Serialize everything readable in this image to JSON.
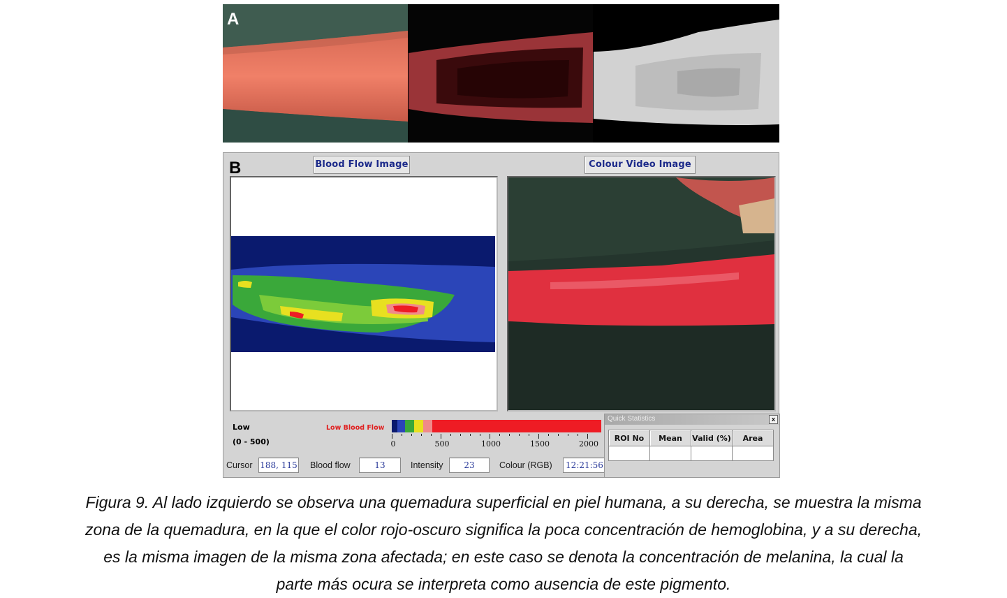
{
  "panel_a": {
    "letter": "A"
  },
  "panel_b": {
    "letter": "B",
    "tabs": {
      "blood_flow": "Blood Flow Image",
      "colour_video": "Colour Video Image"
    },
    "scale": {
      "low_label": "Low",
      "range_label": "(0 - 500)",
      "low_flow_label": "Low Blood Flow",
      "colors": [
        "#0a1a6e",
        "#2b45b8",
        "#3aa83a",
        "#e8e020",
        "#f08a8a",
        "#ee1c24"
      ],
      "tick_labels": [
        "0",
        "500",
        "1000",
        "1500",
        "2000"
      ]
    },
    "fields": {
      "cursor_label": "Cursor",
      "cursor_value": "188, 115",
      "blood_flow_label": "Blood flow",
      "blood_flow_value": "13",
      "intensity_label": "Intensity",
      "intensity_value": "23",
      "colour_label": "Colour (RGB)",
      "time_value": "12:21:56"
    },
    "quick_stats": {
      "title": "Quick Statistics",
      "close": "x",
      "headers": [
        "ROI No",
        "Mean",
        "Valid (%)",
        "Area"
      ]
    }
  },
  "caption": {
    "line1": "Figura 9. Al lado izquierdo se observa una quemadura superficial en piel humana, a su derecha, se muestra la misma",
    "line2": "zona de la quemadura, en la que el color rojo-oscuro significa la poca concentración de hemoglobina, y a su derecha,",
    "line3": "es la misma imagen de la misma zona afectada; en este caso se denota la concentración de melanina, la cual la",
    "line4": "parte más ocura se interpreta como ausencia de este pigmento."
  }
}
